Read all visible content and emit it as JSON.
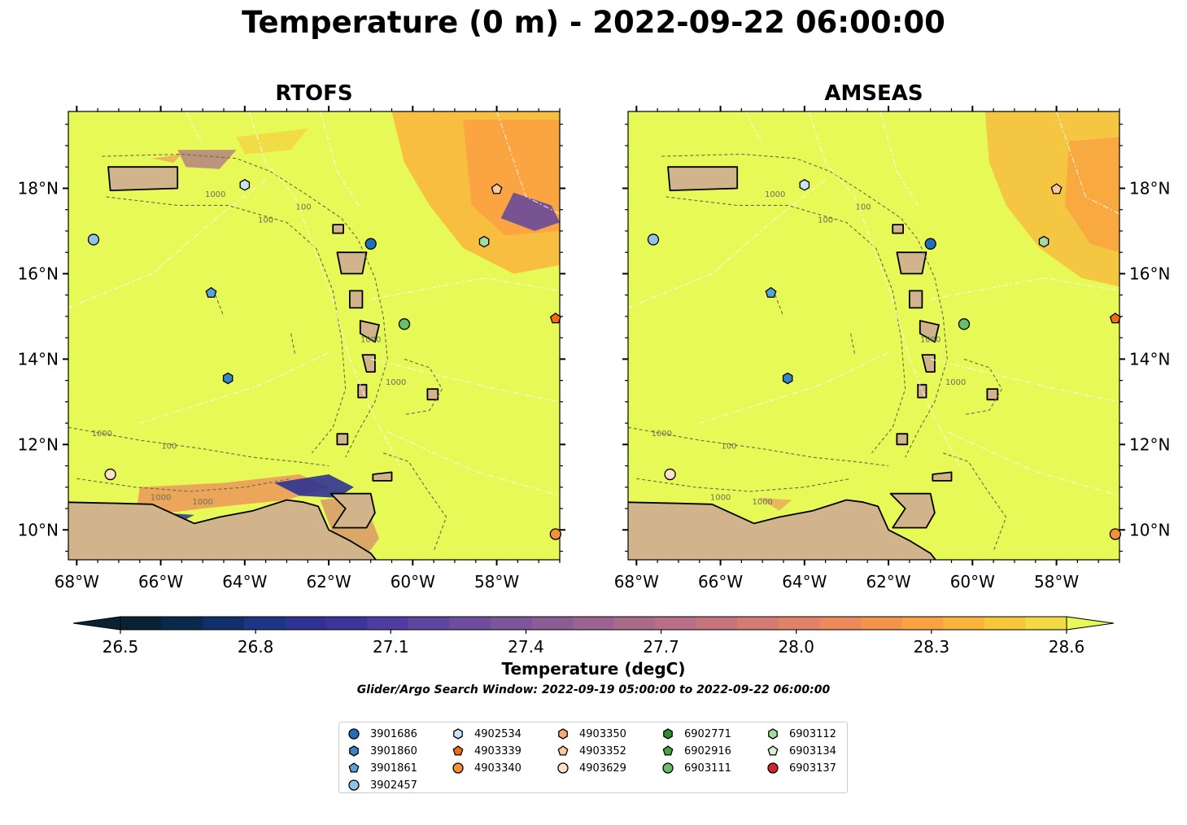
{
  "title": "Temperature (0 m) - 2022-09-22 06:00:00",
  "colors": {
    "land": "#d2b48c",
    "ocean_base": "#e6f957",
    "colormap": [
      "#0a2233",
      "#0b2a4b",
      "#102f6b",
      "#1d3584",
      "#2f3294",
      "#3e359c",
      "#503ba0",
      "#5f44a0",
      "#6e4d9e",
      "#7d559a",
      "#8c5c95",
      "#9b6490",
      "#aa6a8a",
      "#b96f84",
      "#c7757c",
      "#d47b73",
      "#e18268",
      "#ec8a5b",
      "#f4944c",
      "#f9a241",
      "#fab43b",
      "#f8c63a",
      "#f1da43"
    ],
    "colormap_over": "#e6f957"
  },
  "chart_data": [
    {
      "type": "heatmap",
      "title": "RTOFS",
      "xlim": [
        -68.2,
        -56.5
      ],
      "ylim": [
        9.3,
        19.8
      ],
      "x_ticks": [
        -68,
        -66,
        -64,
        -62,
        -60,
        -58
      ],
      "x_tick_labels": [
        "68°W",
        "66°W",
        "64°W",
        "62°W",
        "60°W",
        "58°W"
      ],
      "y_ticks": [
        10,
        12,
        14,
        16,
        18
      ],
      "y_tick_labels": [
        "10°N",
        "12°N",
        "14°N",
        "16°N",
        "18°N"
      ],
      "y_labels_side": "left",
      "contour_labels": [
        {
          "text": "1000",
          "lon": -64.7,
          "lat": 17.8
        },
        {
          "text": "100",
          "lon": -62.6,
          "lat": 17.5
        },
        {
          "text": "100",
          "lon": -63.5,
          "lat": 17.2
        },
        {
          "text": "1000",
          "lon": -60.4,
          "lat": 13.4
        },
        {
          "text": "1000",
          "lon": -67.4,
          "lat": 12.2
        },
        {
          "text": "100",
          "lon": -65.8,
          "lat": 11.9
        },
        {
          "text": "1000",
          "lon": -66.0,
          "lat": 10.7
        },
        {
          "text": "1000",
          "lon": -65.0,
          "lat": 10.6
        },
        {
          "text": "1000",
          "lon": -61.0,
          "lat": 14.4
        }
      ]
    },
    {
      "type": "heatmap",
      "title": "AMSEAS",
      "xlim": [
        -68.2,
        -56.5
      ],
      "ylim": [
        9.3,
        19.8
      ],
      "x_ticks": [
        -68,
        -66,
        -64,
        -62,
        -60,
        -58
      ],
      "x_tick_labels": [
        "68°W",
        "66°W",
        "64°W",
        "62°W",
        "60°W",
        "58°W"
      ],
      "y_ticks": [
        10,
        12,
        14,
        16,
        18
      ],
      "y_tick_labels": [
        "10°N",
        "12°N",
        "14°N",
        "16°N",
        "18°N"
      ],
      "y_labels_side": "right",
      "contour_labels": [
        {
          "text": "1000",
          "lon": -64.7,
          "lat": 17.8
        },
        {
          "text": "100",
          "lon": -62.6,
          "lat": 17.5
        },
        {
          "text": "100",
          "lon": -63.5,
          "lat": 17.2
        },
        {
          "text": "1000",
          "lon": -60.4,
          "lat": 13.4
        },
        {
          "text": "1000",
          "lon": -67.4,
          "lat": 12.2
        },
        {
          "text": "100",
          "lon": -65.8,
          "lat": 11.9
        },
        {
          "text": "1000",
          "lon": -66.0,
          "lat": 10.7
        },
        {
          "text": "1000",
          "lon": -65.0,
          "lat": 10.6
        },
        {
          "text": "1000",
          "lon": -61.0,
          "lat": 14.4
        }
      ]
    }
  ],
  "floats": [
    {
      "id": "3901686",
      "marker": "circle",
      "color": "#1f6fb2",
      "lon": -61.0,
      "lat": 16.7
    },
    {
      "id": "3901860",
      "marker": "hexagon",
      "color": "#3a86c4",
      "lon": -64.4,
      "lat": 13.55
    },
    {
      "id": "3901861",
      "marker": "pentagon",
      "color": "#5aa1d8",
      "lon": -64.8,
      "lat": 15.55
    },
    {
      "id": "3902457",
      "marker": "circle",
      "color": "#8fc3e8",
      "lon": -67.6,
      "lat": 16.8
    },
    {
      "id": "4902534",
      "marker": "hexagon",
      "color": "#c9e2f6",
      "lon": -64.0,
      "lat": 18.08
    },
    {
      "id": "4903339",
      "marker": "pentagon",
      "color": "#ef6c12",
      "lon": -56.6,
      "lat": 14.95
    },
    {
      "id": "4903340",
      "marker": "circle",
      "color": "#f58f3a",
      "lon": -56.6,
      "lat": 9.9
    },
    {
      "id": "4903350",
      "marker": "hexagon",
      "color": "#f8ab6e",
      "lon": null,
      "lat": null
    },
    {
      "id": "4903352",
      "marker": "pentagon",
      "color": "#fbc79b",
      "lon": -58.0,
      "lat": 17.98
    },
    {
      "id": "4903629",
      "marker": "circle",
      "color": "#fde0c5",
      "lon": -67.2,
      "lat": 11.3
    },
    {
      "id": "6902771",
      "marker": "hexagon",
      "color": "#2c8f2c",
      "lon": null,
      "lat": null
    },
    {
      "id": "6902916",
      "marker": "pentagon",
      "color": "#43a643",
      "lon": null,
      "lat": null
    },
    {
      "id": "6903111",
      "marker": "circle",
      "color": "#67c067",
      "lon": -60.2,
      "lat": 14.82
    },
    {
      "id": "6903112",
      "marker": "hexagon",
      "color": "#a4dba1",
      "lon": -58.3,
      "lat": 16.75
    },
    {
      "id": "6903134",
      "marker": "pentagon",
      "color": "#d6f2d1",
      "lon": null,
      "lat": null
    },
    {
      "id": "6903137",
      "marker": "circle",
      "color": "#d62728",
      "lon": null,
      "lat": null
    }
  ],
  "colorbar": {
    "min": 26.5,
    "max": 28.6,
    "ticks": [
      "26.5",
      "26.8",
      "27.1",
      "27.4",
      "27.7",
      "28.0",
      "28.3",
      "28.6"
    ],
    "label": "Temperature (degC)"
  },
  "search_window": "Glider/Argo Search Window: 2022-09-19 05:00:00 to 2022-09-22 06:00:00"
}
